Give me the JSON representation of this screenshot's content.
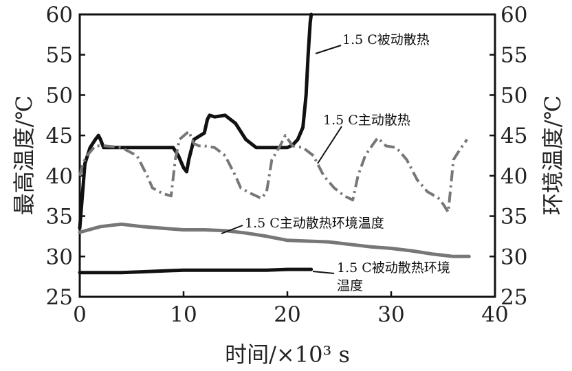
{
  "chart_data": {
    "type": "line",
    "xlabel": "时间/×10³ s",
    "ylabel_left": "最高温度/℃",
    "ylabel_right": "环境温度/℃",
    "xlim": [
      0,
      40
    ],
    "ylim": [
      25,
      60
    ],
    "x_ticks": [
      "0",
      "10",
      "20",
      "30",
      "40"
    ],
    "y_ticks": [
      "25",
      "30",
      "35",
      "40",
      "45",
      "50",
      "55",
      "60"
    ],
    "grid": false,
    "legend": "none (inline annotations with leader lines)",
    "series": [
      {
        "name": "1.5 C被动散热",
        "color": "#111111",
        "style": "solid-thick",
        "x": [
          0,
          0.5,
          1,
          1.5,
          1.8,
          2,
          2.3,
          3,
          5,
          7,
          9,
          9.5,
          10,
          10.3,
          10.5,
          11,
          12,
          12.3,
          12.5,
          13,
          14,
          15,
          16,
          17,
          18,
          19,
          20,
          20.5,
          21,
          21.5,
          21.8,
          22,
          22.1,
          22.2,
          22.3
        ],
        "y": [
          33.5,
          41.5,
          43.5,
          44.5,
          45,
          44.5,
          43.5,
          43.5,
          43.5,
          43.5,
          43.5,
          42.5,
          41,
          40.5,
          42,
          44.5,
          45.3,
          47,
          47.5,
          47.3,
          47.5,
          46.5,
          44.5,
          43.5,
          43.5,
          43.5,
          43.5,
          43.8,
          44.5,
          46,
          50,
          55,
          57,
          59,
          60
        ]
      },
      {
        "name": "1.5 C主动散热",
        "color": "#777777",
        "style": "dash-dot",
        "x": [
          0,
          0.3,
          0.7,
          1.5,
          2.5,
          4,
          5.5,
          6.5,
          7,
          8,
          8.8,
          9.2,
          9.6,
          10.5,
          11,
          11.5,
          12,
          13,
          14,
          15,
          15.5,
          16.5,
          17.5,
          18,
          18.5,
          19.3,
          19.8,
          20.5,
          21.5,
          22.5,
          23.5,
          24.5,
          25.5,
          26.3,
          26.8,
          27.5,
          28.3,
          28.7,
          29.5,
          30.5,
          31.5,
          32.5,
          33.5,
          34.5,
          35,
          35.5,
          36,
          36.5,
          37.3
        ],
        "y": [
          40,
          41.5,
          42.5,
          43.7,
          43.7,
          43.5,
          42.5,
          40,
          38.5,
          37.8,
          37.5,
          42,
          44.5,
          45.5,
          44,
          43.7,
          43.7,
          43.5,
          42.5,
          40,
          38.5,
          37.8,
          37.2,
          38,
          42,
          43.7,
          45,
          43.7,
          43.5,
          42.5,
          40,
          38.5,
          37.5,
          37,
          40,
          42.5,
          44,
          44.7,
          43.7,
          43.5,
          42,
          39.5,
          38,
          37.3,
          36.5,
          35.5,
          42,
          43,
          44.5
        ]
      },
      {
        "name": "1.5 C主动散热环境温度",
        "color": "#777777",
        "style": "solid-thick",
        "x": [
          0,
          2,
          4,
          6,
          8,
          10,
          12,
          14,
          16,
          18,
          20,
          22,
          24,
          26,
          28,
          30,
          32,
          34,
          36,
          37.5
        ],
        "y": [
          33,
          33.7,
          34,
          33.7,
          33.5,
          33.3,
          33.3,
          33.2,
          32.9,
          32.5,
          32,
          31.9,
          31.8,
          31.5,
          31.2,
          31,
          30.7,
          30.3,
          30,
          30
        ]
      },
      {
        "name": "1.5 C被动散热环境温度",
        "color": "#111111",
        "style": "solid-thick",
        "x": [
          0,
          2,
          4,
          6,
          8,
          10,
          12,
          14,
          16,
          18,
          20,
          22.3
        ],
        "y": [
          28,
          28,
          28,
          28.1,
          28.2,
          28.3,
          28.3,
          28.3,
          28.3,
          28.3,
          28.4,
          28.4
        ]
      }
    ],
    "annotations": [
      {
        "lines": [
          "1.5 C被动散热"
        ],
        "target": [
          22.3,
          57
        ]
      },
      {
        "lines": [
          "1.5 C主动散热"
        ],
        "target": [
          22.5,
          42.3
        ]
      },
      {
        "lines": [
          "1.5 C主动散热环境温度"
        ],
        "target": [
          13.5,
          33
        ]
      },
      {
        "lines": [
          "1.5 C被动散热环境",
          "温度"
        ],
        "target": [
          22,
          28.4
        ]
      }
    ]
  }
}
